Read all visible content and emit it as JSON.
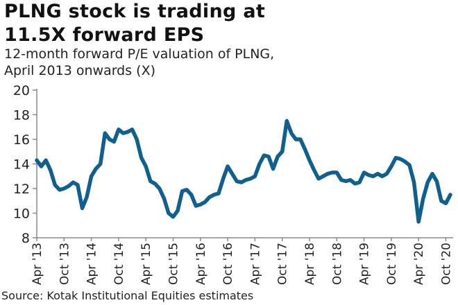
{
  "header": {
    "title_line1": "PLNG stock is trading at",
    "title_line2": "11.5X forward EPS",
    "subtitle_line1": "12-month forward P/E valuation of PLNG,",
    "subtitle_line2": "April 2013 onwards (X)"
  },
  "footer": {
    "source": "Source: Kotak Institutional Equities estimates"
  },
  "chart_data": {
    "type": "line",
    "title": "PLNG stock is trading at 11.5X forward EPS",
    "subtitle": "12-month forward P/E valuation of PLNG, April 2013 onwards (X)",
    "xlabel": "",
    "ylabel": "",
    "ylim": [
      8,
      20
    ],
    "yticks": [
      8,
      10,
      12,
      14,
      16,
      18,
      20
    ],
    "xticks": [
      "Apr '13",
      "Oct '13",
      "Apr '14",
      "Oct '14",
      "Apr '15",
      "Oct '15",
      "Apr '16",
      "Oct '16",
      "Apr '17",
      "Oct '17",
      "Apr '18",
      "Oct '18",
      "Apr '19",
      "Oct '19",
      "Apr '20",
      "Oct '20"
    ],
    "grid": false,
    "line_color": "#0f5f8f",
    "x_start": "2013-04",
    "x_step": "1 month",
    "values": [
      14.3,
      13.8,
      14.3,
      13.5,
      12.3,
      11.9,
      12.0,
      12.2,
      12.5,
      12.3,
      10.4,
      11.3,
      13.0,
      13.6,
      14.0,
      16.5,
      16.0,
      15.8,
      16.8,
      16.5,
      16.6,
      16.8,
      16.0,
      14.5,
      13.8,
      12.6,
      12.4,
      12.0,
      11.2,
      10.0,
      9.7,
      10.2,
      11.8,
      11.9,
      11.5,
      10.6,
      10.7,
      10.9,
      11.3,
      11.5,
      11.6,
      12.8,
      13.8,
      13.2,
      12.6,
      12.5,
      12.7,
      12.8,
      13.0,
      14.0,
      14.7,
      14.6,
      13.6,
      14.6,
      15.0,
      17.5,
      16.5,
      16.0,
      16.0,
      15.2,
      14.3,
      13.5,
      12.8,
      13.0,
      13.2,
      13.3,
      13.3,
      12.7,
      12.6,
      12.7,
      12.4,
      12.5,
      13.3,
      13.1,
      13.0,
      13.2,
      13.0,
      13.2,
      13.8,
      14.5,
      14.4,
      14.2,
      13.9,
      12.5,
      9.3,
      11.2,
      12.5,
      13.2,
      12.6,
      11.0,
      10.8,
      11.5
    ]
  }
}
